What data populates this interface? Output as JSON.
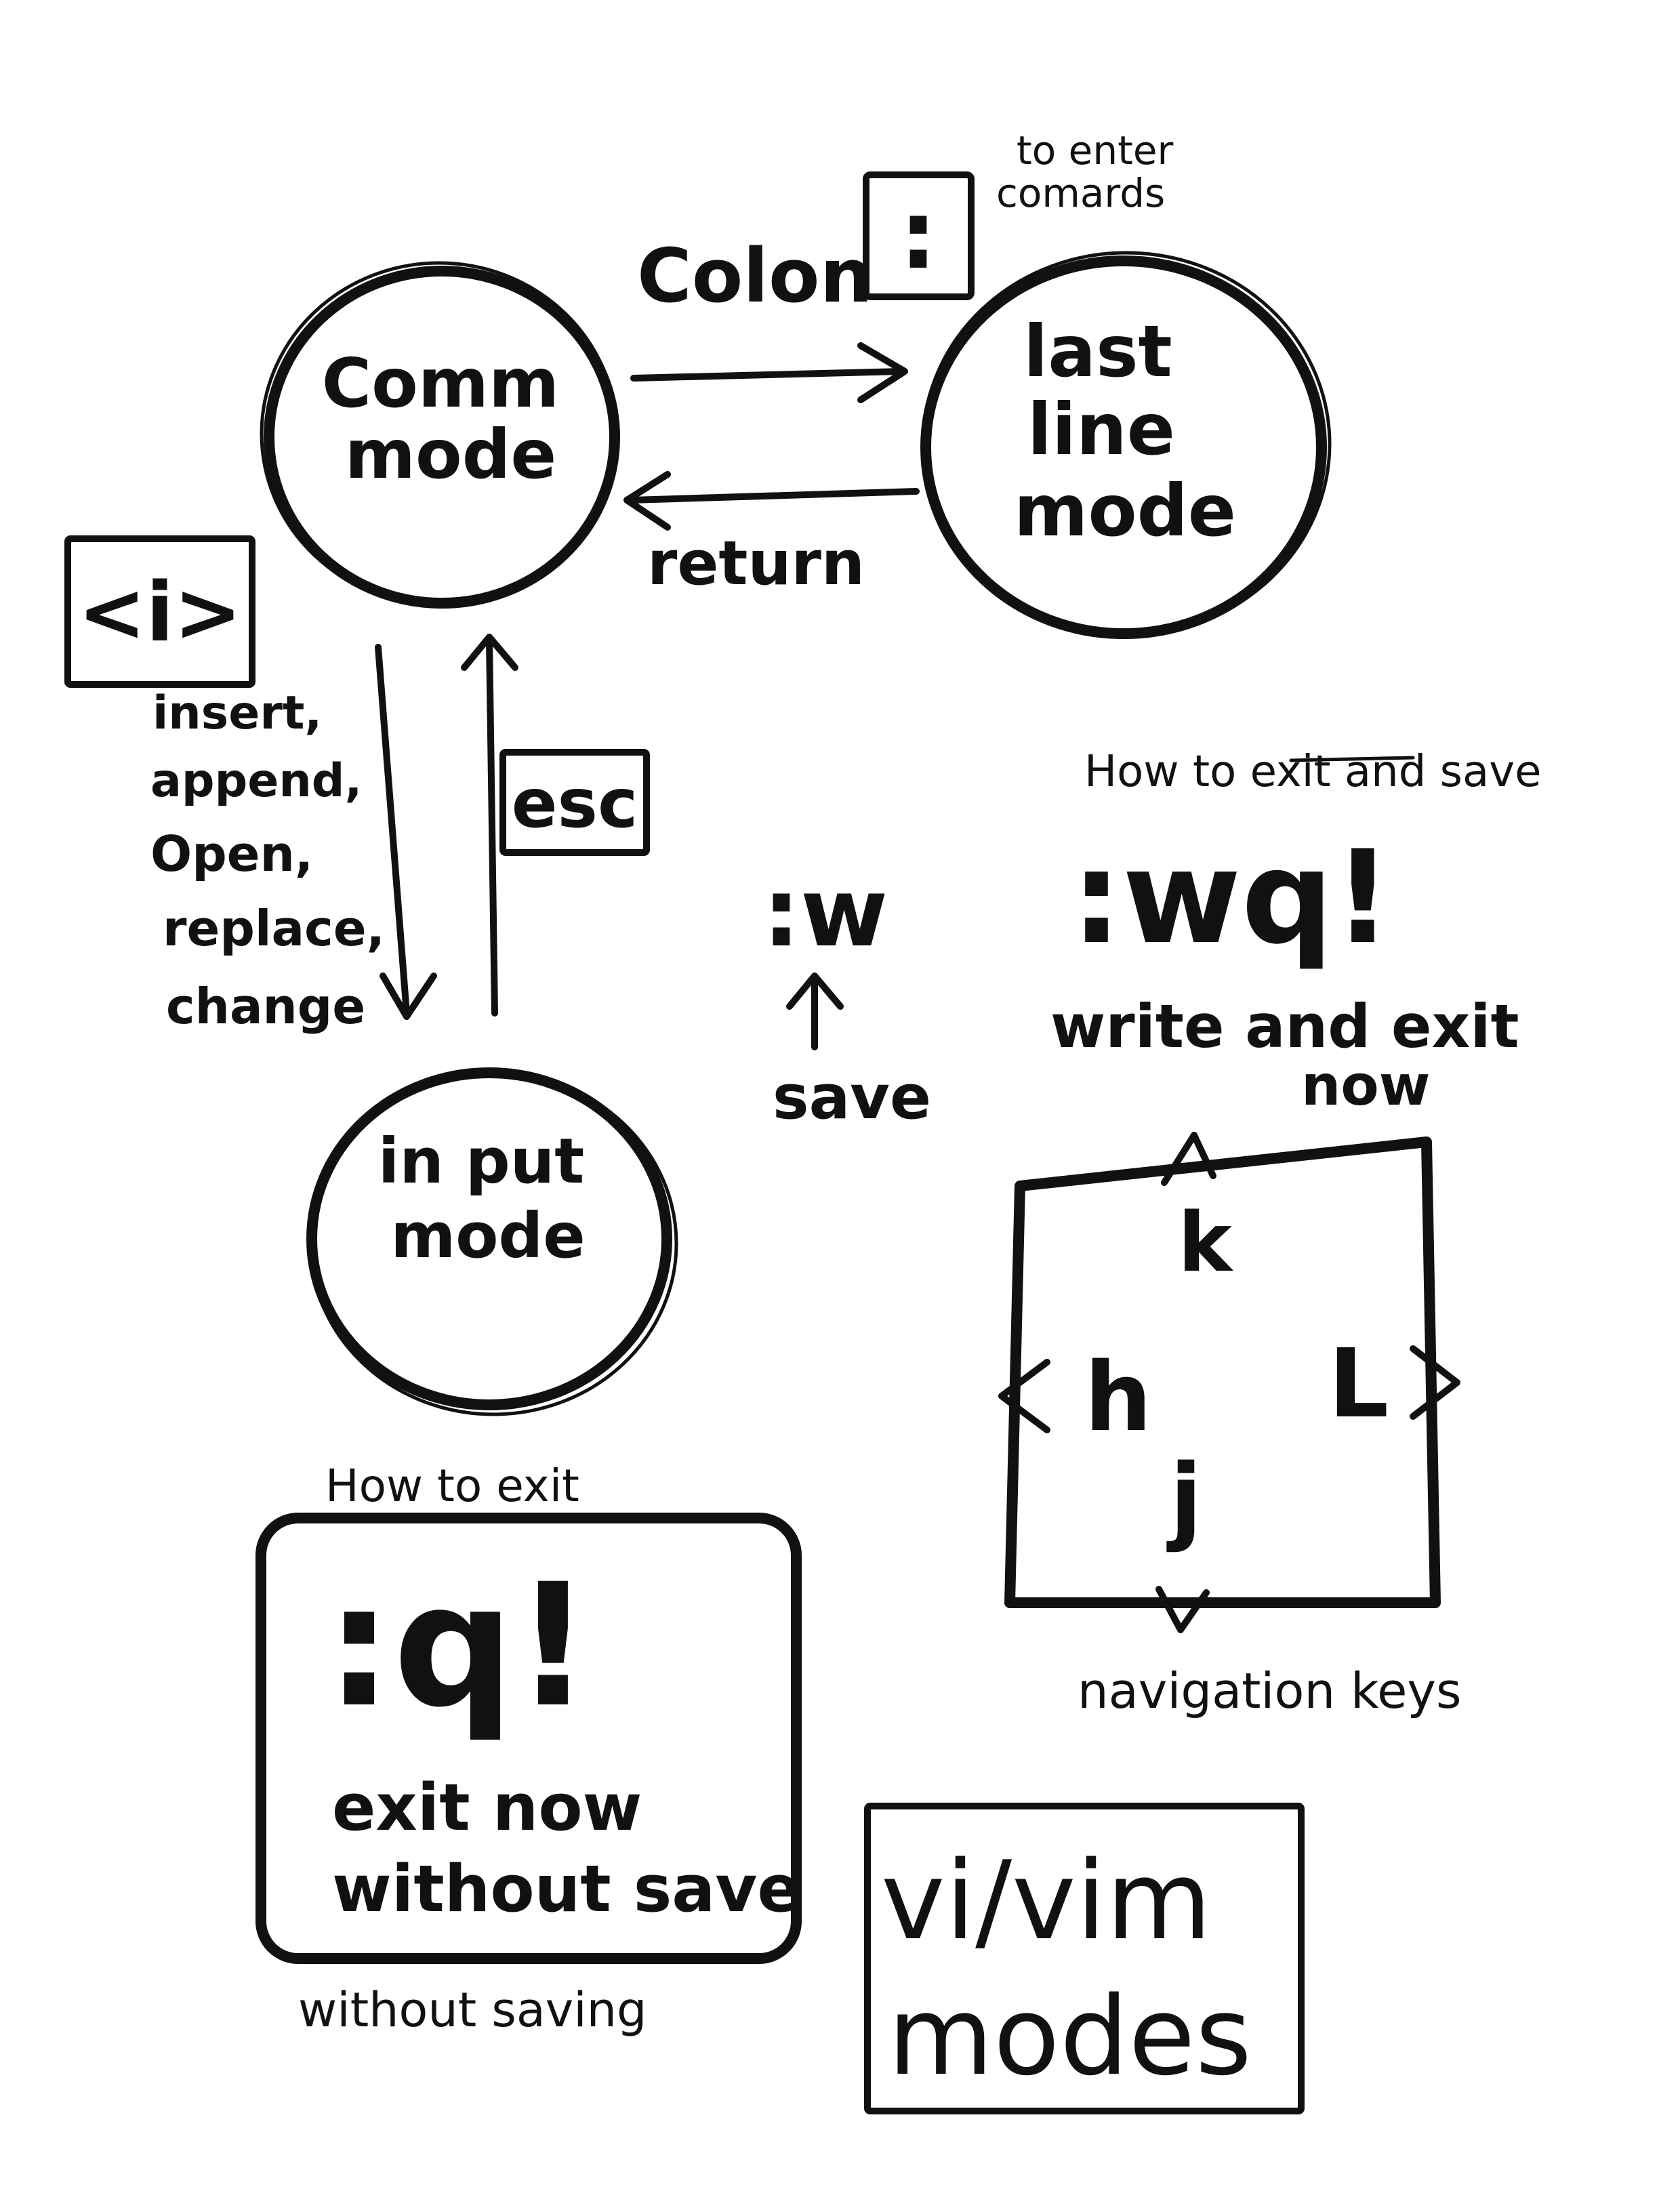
{
  "diagram": {
    "colors": {
      "ink": "#111111",
      "paper": "#ffffff"
    },
    "nodes": {
      "command_mode": {
        "line1": "Comm",
        "line2": "mode"
      },
      "last_line_mode": {
        "line1": "last",
        "line2": "line",
        "line3": "mode"
      },
      "input_mode": {
        "line1": "in put",
        "line2": "mode"
      }
    },
    "edges": {
      "colon": {
        "label": "Colon",
        "key": ":",
        "note_line1": "to enter",
        "note_line2": "comards"
      },
      "return": {
        "label": "return"
      },
      "esc": {
        "label": "esc"
      },
      "insert": {
        "key": "<i>",
        "lines": [
          "insert,",
          "append,",
          "Open,",
          "replace,",
          "change"
        ]
      }
    },
    "commands": {
      "write_quit": {
        "heading": "How to exit and save",
        "command": ":wq!",
        "desc_line1": "write and exit",
        "desc_line2": "now"
      },
      "save": {
        "command": ":w",
        "label": "save"
      },
      "quit_nosave": {
        "heading": "How to exit",
        "command": ":q!",
        "desc_line1": "exit now",
        "desc_line2": "without save",
        "footnote": "without saving"
      }
    },
    "navigation": {
      "keys": {
        "up": "k",
        "left": "h",
        "right": "L",
        "down": "j"
      },
      "caption": "navigation keys"
    },
    "title": {
      "line1": "vi/vim",
      "line2": "modes"
    }
  }
}
